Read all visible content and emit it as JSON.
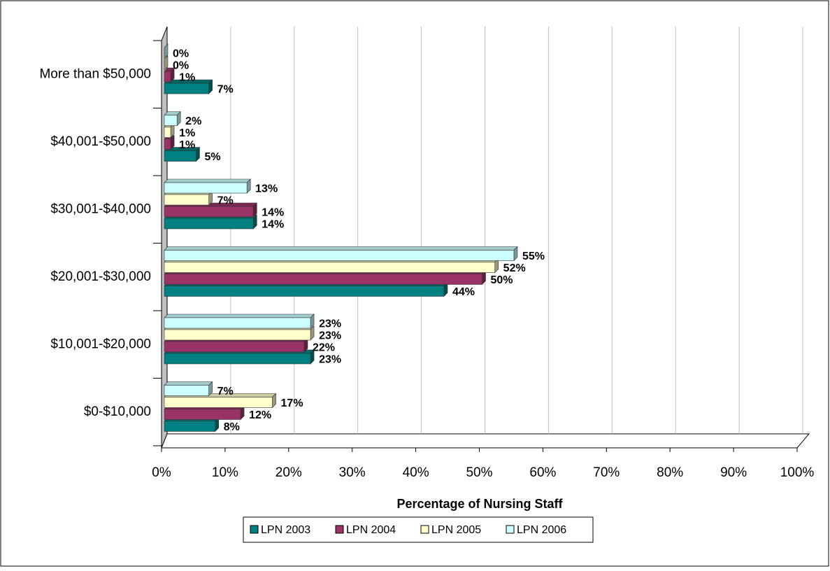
{
  "chart_data": {
    "type": "bar",
    "orientation": "horizontal",
    "x_label": "Percentage of Nursing Staff",
    "categories": [
      "More than $50,000",
      "$40,001-$50,000",
      "$30,001-$40,000",
      "$20,001-$30,000",
      "$10,001-$20,000",
      "$0-$10,000"
    ],
    "series": [
      {
        "name": "LPN 2003",
        "color": "#008080",
        "values": [
          7,
          5,
          14,
          44,
          23,
          8
        ],
        "value_labels": [
          "7%",
          "5%",
          "14%",
          "44%",
          "23%",
          "8%"
        ]
      },
      {
        "name": "LPN 2004",
        "color": "#993366",
        "values": [
          1,
          1,
          14,
          50,
          22,
          12
        ],
        "value_labels": [
          "1%",
          "1%",
          "14%",
          "50%",
          "22%",
          "12%"
        ]
      },
      {
        "name": "LPN 2005",
        "color": "#FFFFCC",
        "values": [
          0,
          1,
          7,
          52,
          23,
          17
        ],
        "value_labels": [
          "0%",
          "1%",
          "7%",
          "52%",
          "23%",
          "17%"
        ]
      },
      {
        "name": "LPN 2006",
        "color": "#CCFFFF",
        "values": [
          0,
          2,
          13,
          55,
          23,
          7
        ],
        "value_labels": [
          "0%",
          "2%",
          "13%",
          "55%",
          "23%",
          "7%"
        ]
      }
    ],
    "xlim": [
      0,
      100
    ],
    "xticks": [
      {
        "value": 0,
        "label": "0%"
      },
      {
        "value": 10,
        "label": "10%"
      },
      {
        "value": 20,
        "label": "20%"
      },
      {
        "value": 30,
        "label": "30%"
      },
      {
        "value": 40,
        "label": "40%"
      },
      {
        "value": 50,
        "label": "50%"
      },
      {
        "value": 60,
        "label": "60%"
      },
      {
        "value": 70,
        "label": "70%"
      },
      {
        "value": 80,
        "label": "80%"
      },
      {
        "value": 90,
        "label": "90%"
      },
      {
        "value": 100,
        "label": "100%"
      }
    ],
    "grid": true,
    "legend": "bottom"
  }
}
